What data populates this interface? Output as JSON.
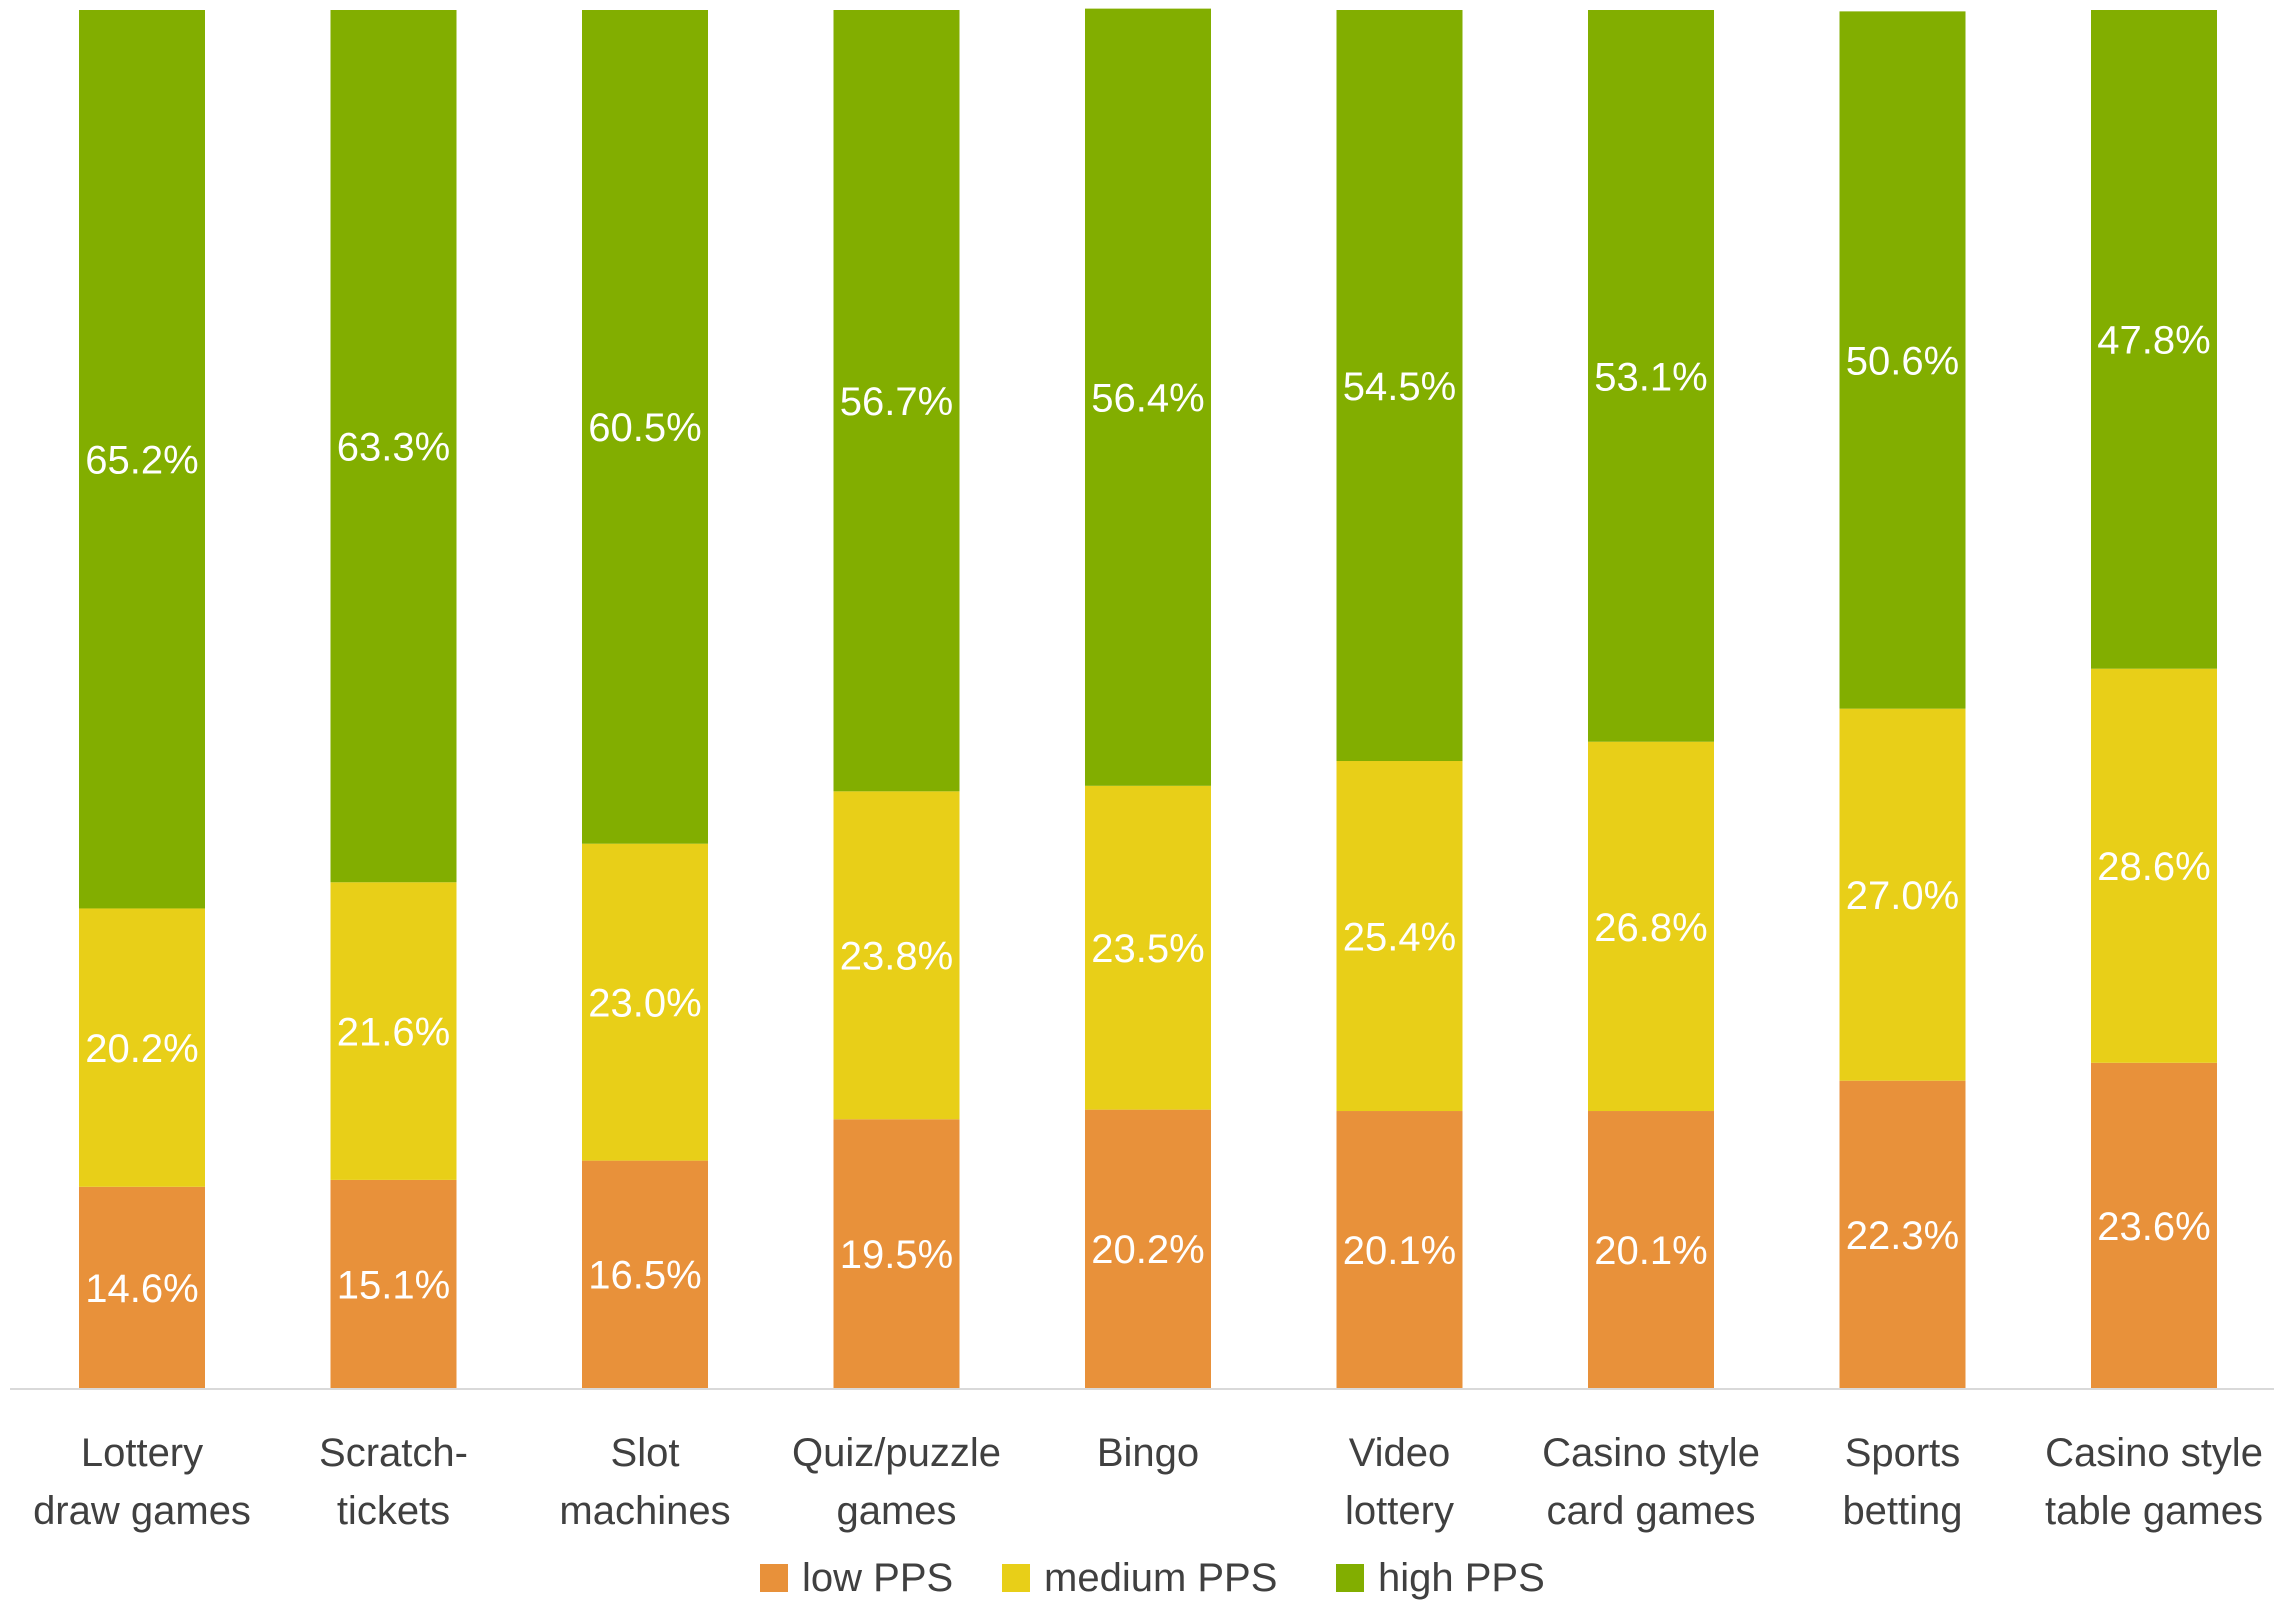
{
  "chart_data": {
    "type": "bar",
    "stacked": true,
    "percent_stacked": true,
    "title": "",
    "xlabel": "",
    "ylabel": "",
    "ylim": [
      0,
      100
    ],
    "grid": false,
    "legend_position": "bottom",
    "categories": [
      [
        "Lottery",
        "draw games"
      ],
      [
        "Scratch-",
        "tickets"
      ],
      [
        "Slot",
        "machines"
      ],
      [
        "Quiz/puzzle",
        "games"
      ],
      [
        "Bingo"
      ],
      [
        "Video",
        "lottery"
      ],
      [
        "Casino style",
        "card games"
      ],
      [
        "Sports",
        "betting"
      ],
      [
        "Casino style",
        "table games"
      ]
    ],
    "series": [
      {
        "name": "low PPS",
        "color": "#E8913A",
        "values": [
          14.6,
          15.1,
          16.5,
          19.5,
          20.2,
          20.1,
          20.1,
          22.3,
          23.6
        ],
        "labels": [
          "14.6%",
          "15.1%",
          "16.5%",
          "19.5%",
          "20.2%",
          "20.1%",
          "20.1%",
          "22.3%",
          "23.6%"
        ]
      },
      {
        "name": "medium PPS",
        "color": "#E8CF18",
        "values": [
          20.2,
          21.6,
          23.0,
          23.8,
          23.5,
          25.4,
          26.8,
          27.0,
          28.6
        ],
        "labels": [
          "20.2%",
          "21.6%",
          "23.0%",
          "23.8%",
          "23.5%",
          "25.4%",
          "26.8%",
          "27.0%",
          "28.6%"
        ]
      },
      {
        "name": "high PPS",
        "color": "#82AE00",
        "values": [
          65.2,
          63.3,
          60.5,
          56.7,
          56.4,
          54.5,
          53.1,
          50.6,
          47.8
        ],
        "labels": [
          "65.2%",
          "63.3%",
          "60.5%",
          "56.7%",
          "56.4%",
          "54.5%",
          "53.1%",
          "50.6%",
          "47.8%"
        ]
      }
    ]
  },
  "colors": {
    "label_text": "#ffffff",
    "axis_text": "#404040",
    "axis_line": "#d9d9d9"
  }
}
